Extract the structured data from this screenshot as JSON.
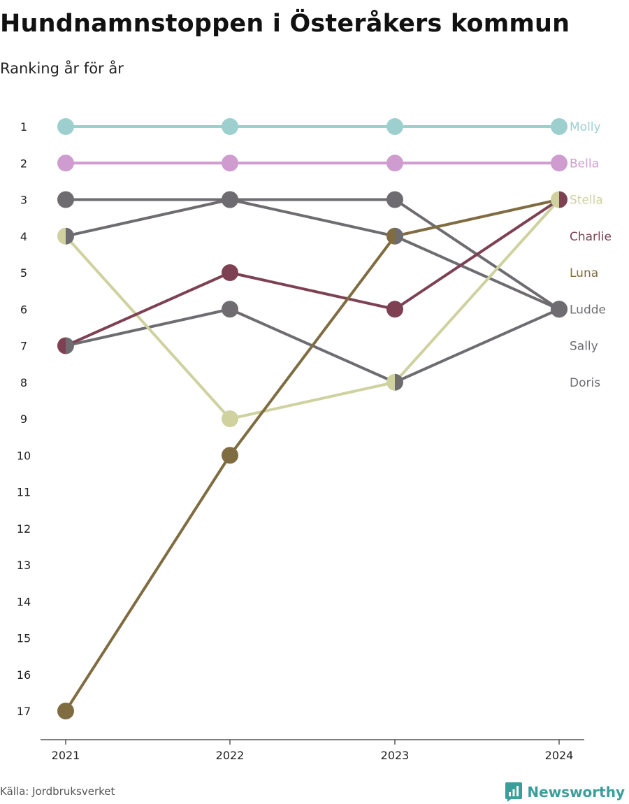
{
  "title": "Hundnamnstoppen i Österåkers kommun",
  "subtitle": "Ranking år för år",
  "source": "Källa: Jordbruksverket",
  "brand": {
    "name": "Newsworthy",
    "icon": "newsworthy-logo-icon",
    "color": "#3a9e9a"
  },
  "chart_data": {
    "type": "line",
    "title": "Hundnamnstoppen i Österåkers kommun",
    "subtitle": "Ranking år för år",
    "x": [
      "2021",
      "2022",
      "2023",
      "2024"
    ],
    "y_ticks": [
      "1",
      "2",
      "3",
      "4",
      "5",
      "6",
      "7",
      "8",
      "9",
      "10",
      "11",
      "12",
      "13",
      "14",
      "15",
      "16",
      "17"
    ],
    "ylim": [
      1,
      17
    ],
    "y_inverted": true,
    "grid": false,
    "legend": "right-end labels",
    "series": [
      {
        "name": "Molly",
        "color": "#9ecfcf",
        "values": [
          1,
          1,
          1,
          1
        ]
      },
      {
        "name": "Bella",
        "color": "#cf9ccf",
        "values": [
          2,
          2,
          2,
          2
        ]
      },
      {
        "name": "Stella",
        "color": "#cfd19e",
        "values": [
          4,
          9,
          8,
          3
        ]
      },
      {
        "name": "Charlie",
        "color": "#7e4154",
        "values": [
          7,
          5,
          6,
          3
        ]
      },
      {
        "name": "Luna",
        "color": "#7f6c41",
        "values": [
          17,
          10,
          4,
          3
        ]
      },
      {
        "name": "Ludde",
        "color": "#6e6c71",
        "values": [
          3,
          3,
          3,
          6
        ]
      },
      {
        "name": "Sally",
        "color": "#6e6c71",
        "values": [
          4,
          3,
          4,
          6
        ]
      },
      {
        "name": "Doris",
        "color": "#6e6c71",
        "values": [
          7,
          6,
          8,
          6
        ]
      }
    ]
  }
}
